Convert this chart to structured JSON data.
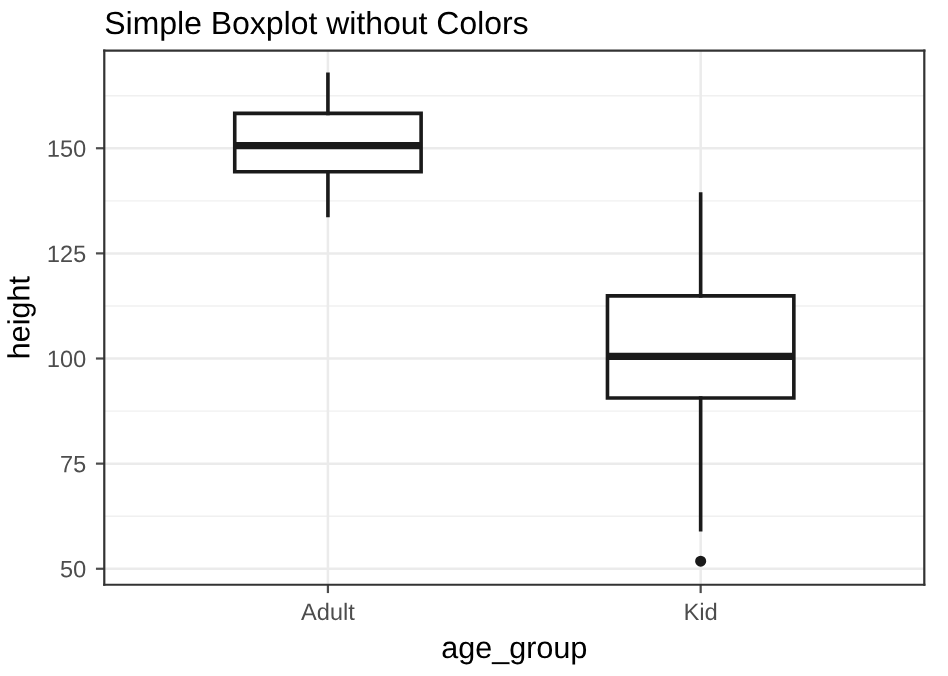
{
  "chart_data": {
    "type": "box",
    "title": "Simple Boxplot without Colors",
    "xlabel": "age_group",
    "ylabel": "height",
    "categories": [
      "Adult",
      "Kid"
    ],
    "boxes": [
      {
        "low": 134,
        "q1": 144.4,
        "median": 150.6,
        "q3": 158.3,
        "high": 167.6
      },
      {
        "low": 59.3,
        "q1": 90.6,
        "median": 100.5,
        "q3": 114.9,
        "high": 139.1,
        "outliers": [
          51.8
        ]
      }
    ],
    "color": "#1a1a1a",
    "ylim": [
      46.2,
      173.2
    ],
    "yticks": [
      50,
      75,
      100,
      125,
      150
    ],
    "grid": true,
    "legend": false
  }
}
